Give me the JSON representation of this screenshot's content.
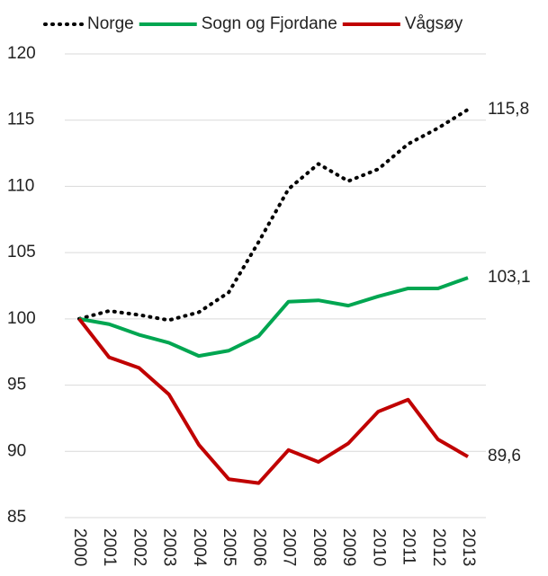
{
  "chart_data": {
    "type": "line",
    "categories": [
      "2000",
      "2001",
      "2002",
      "2003",
      "2004",
      "2005",
      "2006",
      "2007",
      "2008",
      "2009",
      "2010",
      "2011",
      "2012",
      "2013"
    ],
    "series": [
      {
        "name": "Norge",
        "color": "#000000",
        "dash": "dotted",
        "values": [
          100,
          100.6,
          100.3,
          99.9,
          100.5,
          102.0,
          105.8,
          109.8,
          111.7,
          110.4,
          111.3,
          113.2,
          114.4,
          115.8
        ],
        "value_labels": [
          null,
          null,
          null,
          null,
          null,
          null,
          null,
          null,
          null,
          null,
          null,
          null,
          null,
          "115,8"
        ]
      },
      {
        "name": "Sogn og Fjordane",
        "color": "#00a651",
        "values": [
          100,
          99.6,
          98.8,
          98.2,
          97.2,
          97.6,
          98.7,
          101.3,
          101.4,
          101.0,
          101.7,
          102.3,
          102.3,
          103.1
        ],
        "value_labels": [
          null,
          null,
          null,
          null,
          null,
          null,
          null,
          null,
          null,
          null,
          null,
          null,
          null,
          "103,1"
        ]
      },
      {
        "name": "Vågsøy",
        "color": "#c00000",
        "values": [
          100,
          97.1,
          96.3,
          94.3,
          90.5,
          87.9,
          87.6,
          90.1,
          89.2,
          90.6,
          93.0,
          93.9,
          90.9,
          89.6
        ],
        "value_labels": [
          null,
          null,
          null,
          null,
          null,
          null,
          null,
          null,
          null,
          null,
          null,
          null,
          null,
          "89,6"
        ]
      }
    ],
    "ylim": [
      85,
      120
    ],
    "yticks": [
      85,
      90,
      95,
      100,
      105,
      110,
      115,
      120
    ],
    "grid": true,
    "legend": "top"
  }
}
